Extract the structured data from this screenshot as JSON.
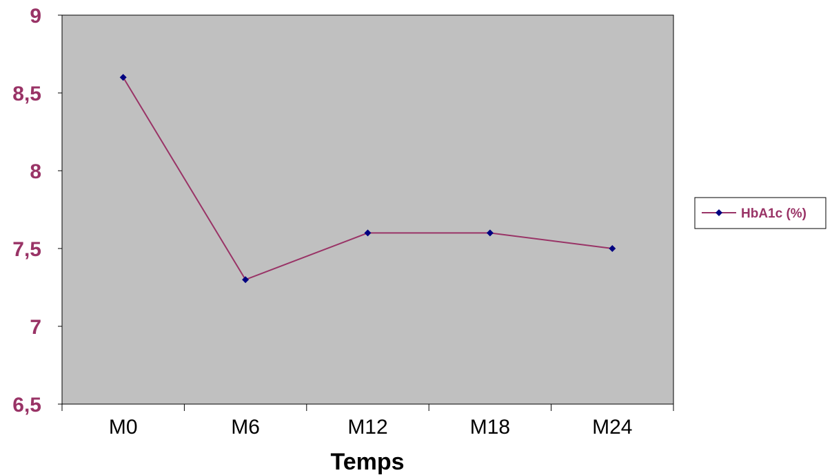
{
  "chart_data": {
    "type": "line",
    "categories": [
      "M0",
      "M6",
      "M12",
      "M18",
      "M24"
    ],
    "series": [
      {
        "name": "HbA1c (%)",
        "values": [
          8.6,
          7.3,
          7.6,
          7.6,
          7.5
        ]
      }
    ],
    "y_ticks": [
      "6,5",
      "7",
      "7,5",
      "8",
      "8,5",
      "9"
    ],
    "y_tick_values": [
      6.5,
      7,
      7.5,
      8,
      8.5,
      9
    ],
    "xlabel": "Temps",
    "ylabel": "",
    "ylim": [
      6.5,
      9
    ],
    "grid": false,
    "legend_position": "right",
    "colors": {
      "plot_background": "#c0c0c0",
      "line": "#993366",
      "marker": "#000080",
      "y_tick_label": "#993366",
      "axis": "#000000"
    }
  }
}
